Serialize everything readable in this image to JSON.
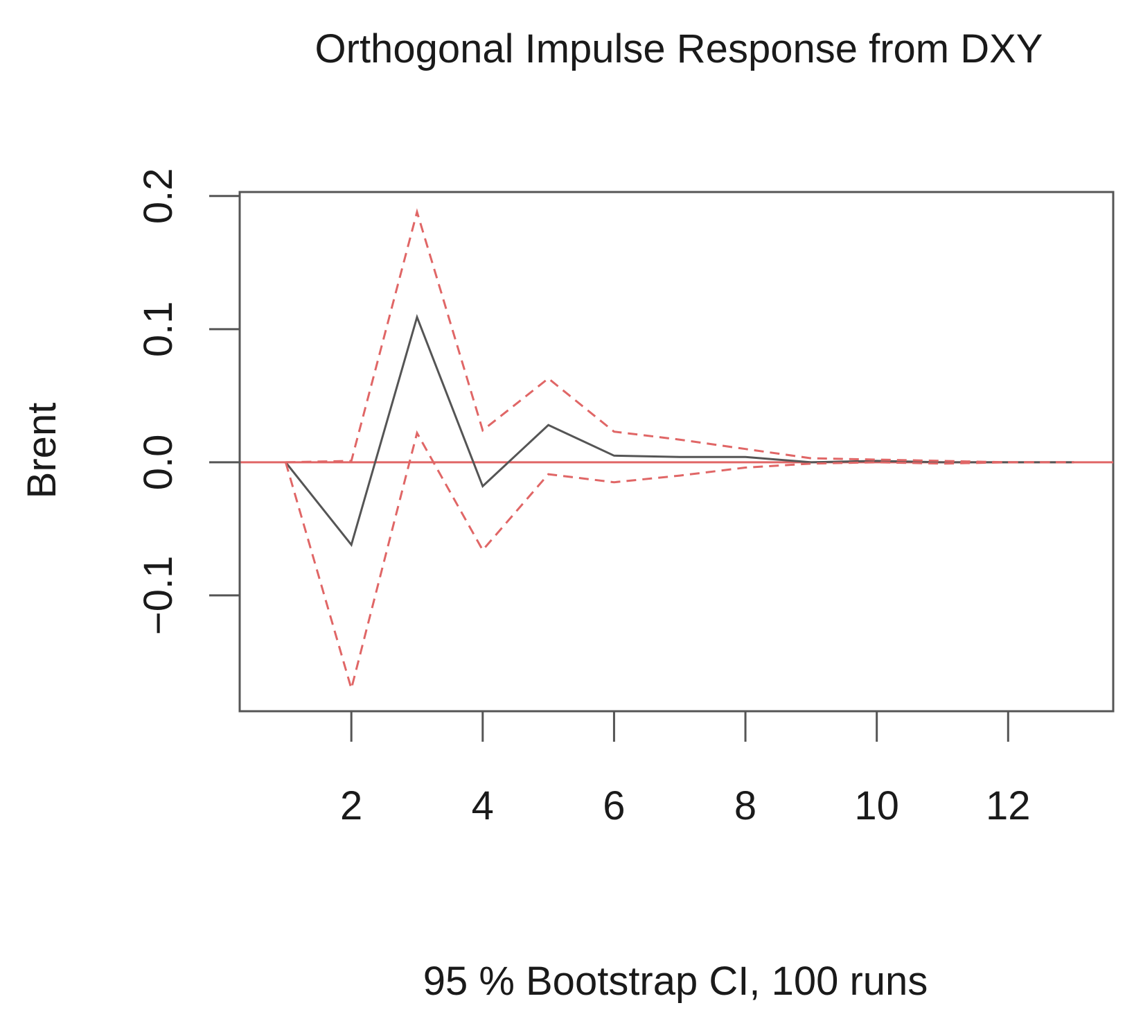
{
  "chart_data": {
    "type": "line",
    "title": "Orthogonal Impulse Response from DXY",
    "xlabel": "95 % Bootstrap CI,  100 runs",
    "ylabel": "Brent",
    "xlim": [
      0.3,
      13.6
    ],
    "ylim": [
      -0.187,
      0.203
    ],
    "x_ticks": [
      2,
      4,
      6,
      8,
      10,
      12
    ],
    "x_tick_labels": [
      "2",
      "4",
      "6",
      "8",
      "10",
      "12"
    ],
    "y_ticks": [
      -0.1,
      0.0,
      0.1,
      0.2
    ],
    "y_tick_labels": [
      "−0.1",
      "0.0",
      "0.1",
      "0.2"
    ],
    "grid": false,
    "x": [
      1,
      2,
      3,
      4,
      5,
      6,
      7,
      8,
      9,
      10,
      11,
      12,
      13
    ],
    "series": [
      {
        "role": "response",
        "style": "solid",
        "color": "#555555",
        "values": [
          0.0,
          -0.062,
          0.109,
          -0.018,
          0.028,
          0.005,
          0.004,
          0.004,
          0.0,
          0.001,
          0.0,
          0.0,
          0.0
        ]
      },
      {
        "role": "upper-ci",
        "style": "dashed",
        "color": "#e06666",
        "values": [
          0.0,
          0.001,
          0.188,
          0.024,
          0.063,
          0.023,
          0.017,
          0.01,
          0.003,
          0.002,
          0.001,
          0.0,
          0.0
        ]
      },
      {
        "role": "lower-ci",
        "style": "dashed",
        "color": "#e06666",
        "values": [
          0.0,
          -0.17,
          0.022,
          -0.066,
          -0.009,
          -0.015,
          -0.01,
          -0.004,
          -0.001,
          0.0,
          -0.001,
          0.0,
          0.0
        ]
      }
    ],
    "reference_line": {
      "y": 0.0,
      "color": "#e06666"
    },
    "axis_color": "#555555"
  }
}
